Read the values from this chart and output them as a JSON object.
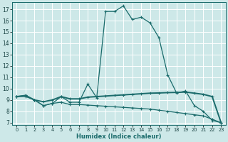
{
  "xlabel": "Humidex (Indice chaleur)",
  "background_color": "#cde8e8",
  "grid_color": "#ffffff",
  "line_color": "#1a6b6b",
  "xlim": [
    -0.5,
    23.5
  ],
  "ylim": [
    6.8,
    17.6
  ],
  "yticks": [
    7,
    8,
    9,
    10,
    11,
    12,
    13,
    14,
    15,
    16,
    17
  ],
  "xticks": [
    0,
    1,
    2,
    3,
    4,
    5,
    6,
    7,
    8,
    9,
    10,
    11,
    12,
    13,
    14,
    15,
    16,
    17,
    18,
    19,
    20,
    21,
    22,
    23
  ],
  "line1_x": [
    0,
    1,
    2,
    3,
    4,
    5,
    6,
    7,
    8,
    9,
    10,
    11,
    12,
    13,
    14,
    15,
    16,
    17,
    18,
    19,
    20,
    21,
    22,
    23
  ],
  "line1_y": [
    9.3,
    9.4,
    9.0,
    8.5,
    8.7,
    9.3,
    8.8,
    8.8,
    10.4,
    9.2,
    16.8,
    16.8,
    17.3,
    16.1,
    16.3,
    15.8,
    14.5,
    11.2,
    9.6,
    9.8,
    8.5,
    8.0,
    7.2,
    7.0
  ],
  "line2_x": [
    0,
    1,
    2,
    3,
    4,
    5,
    6,
    7,
    8,
    9,
    10,
    11,
    12,
    13,
    14,
    15,
    16,
    17,
    18,
    19,
    20,
    21,
    22,
    23
  ],
  "line2_y": [
    9.3,
    9.4,
    9.0,
    8.85,
    9.0,
    9.3,
    9.1,
    9.1,
    9.25,
    9.3,
    9.35,
    9.4,
    9.45,
    9.5,
    9.55,
    9.6,
    9.62,
    9.65,
    9.67,
    9.7,
    9.6,
    9.5,
    9.3,
    7.0
  ],
  "line3_x": [
    0,
    1,
    2,
    3,
    4,
    5,
    6,
    7,
    8,
    9,
    10,
    11,
    12,
    13,
    14,
    15,
    16,
    17,
    18,
    19,
    20,
    21,
    22,
    23
  ],
  "line3_y": [
    9.3,
    9.3,
    9.0,
    8.5,
    8.7,
    8.8,
    8.6,
    8.6,
    8.55,
    8.5,
    8.45,
    8.4,
    8.35,
    8.3,
    8.25,
    8.2,
    8.1,
    8.0,
    7.9,
    7.8,
    7.7,
    7.6,
    7.3,
    7.0
  ]
}
